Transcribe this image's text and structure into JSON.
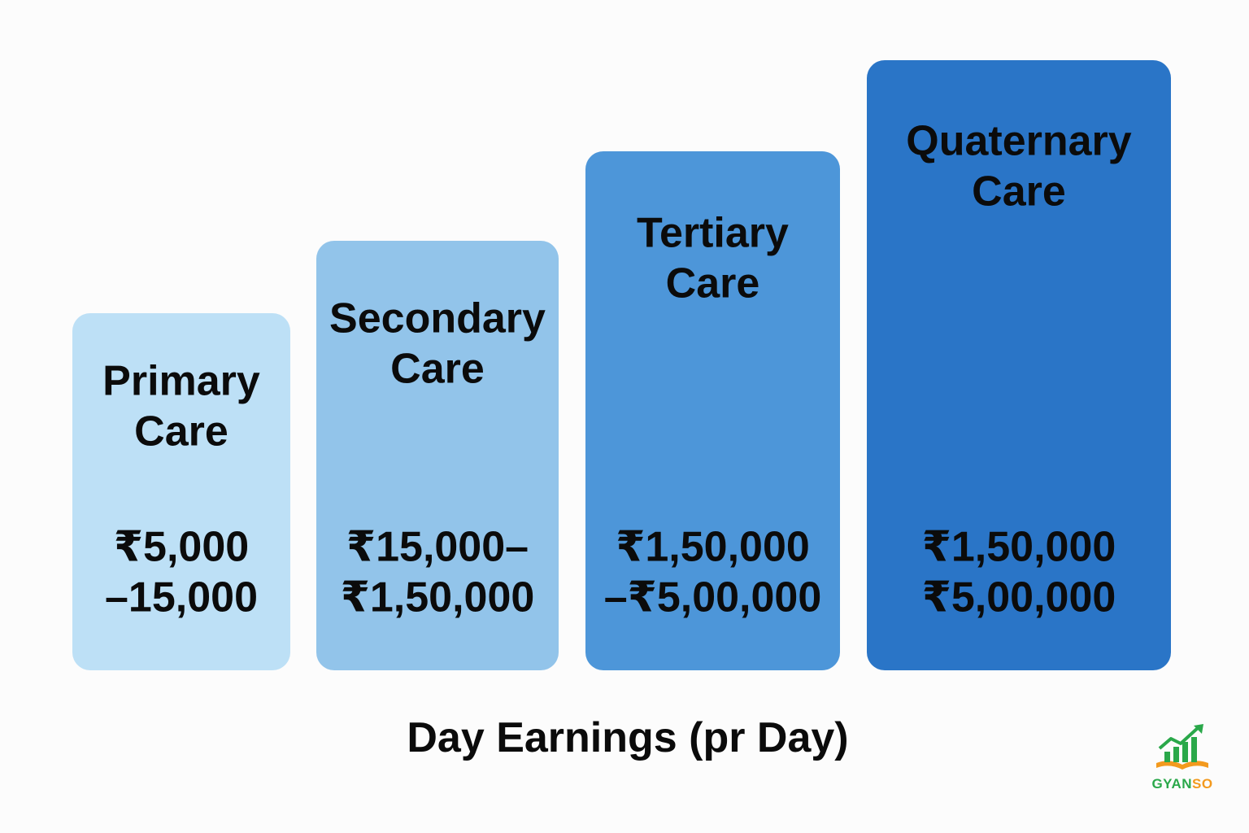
{
  "chart_data": {
    "type": "bar",
    "categories": [
      "Primary Care",
      "Secondary Care",
      "Tertiary Care",
      "Quaternary Care"
    ],
    "bars": [
      {
        "title_lines": [
          "Primary",
          "Care"
        ],
        "value_lines": [
          "₹5,000",
          "–15,000"
        ],
        "color": "#bde0f6"
      },
      {
        "title_lines": [
          "Secondary",
          "Care"
        ],
        "value_lines": [
          "₹15,000–",
          "₹1,50,000"
        ],
        "color": "#92c4ea"
      },
      {
        "title_lines": [
          "Tertiary",
          "Care"
        ],
        "value_lines": [
          "₹1,50,000",
          "–₹5,00,000"
        ],
        "color": "#4d96d9"
      },
      {
        "title_lines": [
          "Quaternary",
          "Care"
        ],
        "value_lines": [
          "₹1,50,000",
          "₹5,00,000"
        ],
        "color": "#2a75c7"
      }
    ],
    "xlabel": "Day Earnings (pr Day)",
    "title": "",
    "ylabel": "",
    "grid": false
  },
  "logo": {
    "text_part1": "GYAN",
    "text_part2": "SO",
    "colors": {
      "green": "#2aa84a",
      "orange": "#f39a1e"
    },
    "icon": "growth-chart-book-icon"
  }
}
